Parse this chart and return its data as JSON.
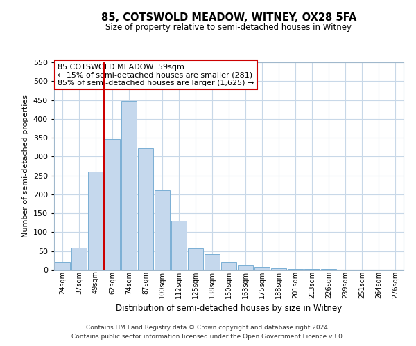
{
  "title": "85, COTSWOLD MEADOW, WITNEY, OX28 5FA",
  "subtitle": "Size of property relative to semi-detached houses in Witney",
  "xlabel": "Distribution of semi-detached houses by size in Witney",
  "ylabel": "Number of semi-detached properties",
  "bar_labels": [
    "24sqm",
    "37sqm",
    "49sqm",
    "62sqm",
    "74sqm",
    "87sqm",
    "100sqm",
    "112sqm",
    "125sqm",
    "138sqm",
    "150sqm",
    "163sqm",
    "175sqm",
    "188sqm",
    "201sqm",
    "213sqm",
    "226sqm",
    "239sqm",
    "251sqm",
    "264sqm",
    "276sqm"
  ],
  "bar_values": [
    20,
    58,
    260,
    347,
    447,
    323,
    210,
    130,
    57,
    42,
    20,
    13,
    8,
    4,
    2,
    1,
    1,
    0,
    0,
    0,
    0
  ],
  "bar_color": "#c5d8ed",
  "bar_edge_color": "#7aafd4",
  "vline_x": 2.5,
  "ylim": [
    0,
    550
  ],
  "yticks": [
    0,
    50,
    100,
    150,
    200,
    250,
    300,
    350,
    400,
    450,
    500,
    550
  ],
  "annotation_title": "85 COTSWOLD MEADOW: 59sqm",
  "annotation_line1": "← 15% of semi-detached houses are smaller (281)",
  "annotation_line2": "85% of semi-detached houses are larger (1,625) →",
  "footnote1": "Contains HM Land Registry data © Crown copyright and database right 2024.",
  "footnote2": "Contains public sector information licensed under the Open Government Licence v3.0.",
  "vline_color": "#cc0000",
  "annotation_box_edge": "#cc0000",
  "grid_color": "#c8d8e8",
  "spine_color": "#a0b8cc"
}
